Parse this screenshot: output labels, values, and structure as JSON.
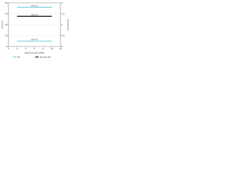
{
  "chart_data": {
    "type": "line",
    "x_label": "Head pressure (MPa)",
    "y_label": "Ra (μm)",
    "y2_label": "Sparsity Ra",
    "x": [
      2,
      4,
      6,
      8,
      10
    ],
    "series": [
      {
        "name": "Ra",
        "label": "60 mm",
        "color": "#3cb4d4",
        "values": [
          72,
          72,
          72,
          72,
          72
        ]
      },
      {
        "name": "Sparsity Ra",
        "label": "30 mm",
        "color": "#111111",
        "axis": "y2",
        "values": [
          1.38,
          1.38,
          1.38,
          1.38,
          1.38
        ]
      },
      {
        "label": "20 mm",
        "color": "#3cb4d4",
        "values": [
          10,
          10,
          10,
          10,
          10
        ]
      }
    ],
    "xlim": [
      0,
      12
    ],
    "xticks": [
      0,
      2,
      4,
      6,
      8,
      10,
      12
    ],
    "ylim": [
      0,
      80
    ],
    "yticks": [
      0,
      20,
      40,
      60,
      80
    ],
    "y2lim": [
      0,
      2
    ],
    "y2ticks": [
      0,
      0.5,
      1,
      1.5,
      2
    ],
    "grid": true
  }
}
